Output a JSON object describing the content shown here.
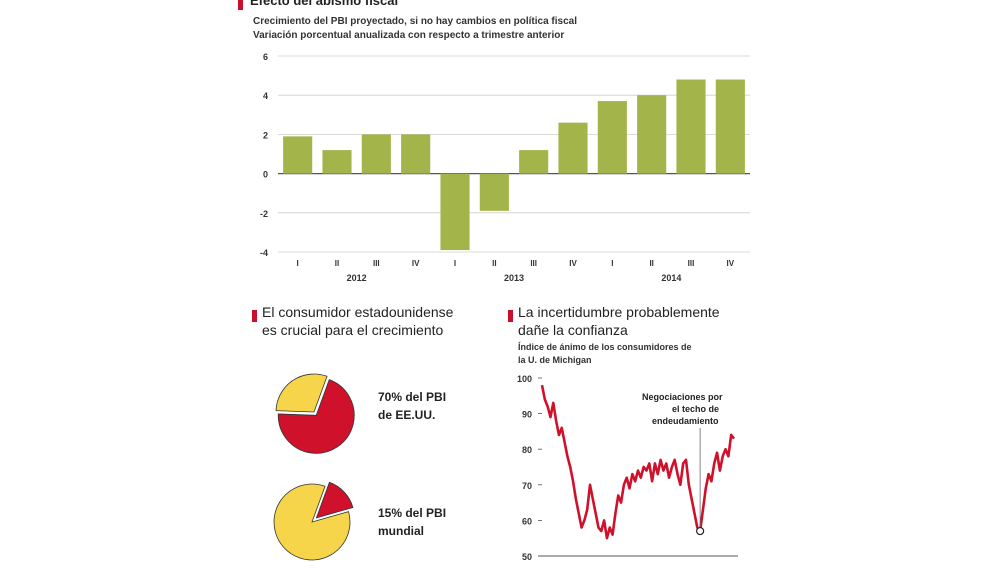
{
  "colors": {
    "bar": "#a3b54a",
    "pie_red": "#d0112b",
    "pie_yellow": "#f6d54a",
    "line": "#d0112b",
    "accent": "#c8102e"
  },
  "top": {
    "title": "Efecto del abismo fiscal",
    "subtitle1": "Crecimiento del PBI proyectado, si no hay cambios en política fiscal",
    "subtitle2": "Variación porcentual anualizada con respecto a trimestre anterior"
  },
  "left": {
    "title_line1": "El consumidor estadounidense",
    "title_line2": "es crucial para el crecimiento",
    "pie1_label_line1": "70% del PBI",
    "pie1_label_line2": "de EE.UU.",
    "pie2_label_line1": "15% del PBI",
    "pie2_label_line2": "mundial"
  },
  "right": {
    "title_line1": "La incertidumbre probablemente",
    "title_line2": "dañe la confianza",
    "subtitle_line1": "Índice de ánimo de los consumidores de",
    "subtitle_line2": "la U. de Michigan",
    "annotation_line1": "Negociaciones por",
    "annotation_line2": "el techo de",
    "annotation_line3": "endeudamiento"
  },
  "chart_data": [
    {
      "type": "bar",
      "title": "Efecto del abismo fiscal",
      "categories": [
        "I",
        "II",
        "III",
        "IV",
        "I",
        "II",
        "III",
        "IV",
        "I",
        "II",
        "III",
        "IV"
      ],
      "groups": [
        "2012",
        "2013",
        "2014"
      ],
      "values": [
        1.9,
        1.2,
        2.0,
        2.0,
        -3.9,
        -1.9,
        1.2,
        2.6,
        3.7,
        4.0,
        4.8,
        4.8
      ],
      "ylim": [
        -4,
        6
      ],
      "yticks": [
        -4,
        -2,
        0,
        2,
        4,
        6
      ],
      "grid": true
    },
    {
      "type": "pie",
      "values": [
        70,
        30
      ],
      "labels": [
        "70% del PBI de EE.UU.",
        ""
      ],
      "colors": [
        "#d0112b",
        "#f6d54a"
      ]
    },
    {
      "type": "pie",
      "values": [
        15,
        85
      ],
      "labels": [
        "15% del PBI mundial",
        ""
      ],
      "colors": [
        "#d0112b",
        "#f6d54a"
      ]
    },
    {
      "type": "line",
      "ylim": [
        50,
        100
      ],
      "yticks": [
        50,
        60,
        70,
        80,
        90,
        100
      ],
      "values": [
        98,
        94,
        92,
        89,
        93,
        88,
        84,
        86,
        82,
        78,
        75,
        71,
        66,
        62,
        58,
        60,
        63,
        70,
        66,
        62,
        58,
        57,
        60,
        55,
        58,
        56,
        62,
        67,
        65,
        70,
        72,
        69,
        73,
        71,
        74,
        72,
        75,
        74,
        76,
        71,
        76,
        73,
        77,
        74,
        76,
        72,
        75,
        77,
        73,
        70,
        76,
        77,
        70,
        66,
        62,
        58,
        57,
        63,
        69,
        73,
        71,
        76,
        79,
        74,
        78,
        80,
        78,
        84,
        83
      ]
    }
  ]
}
